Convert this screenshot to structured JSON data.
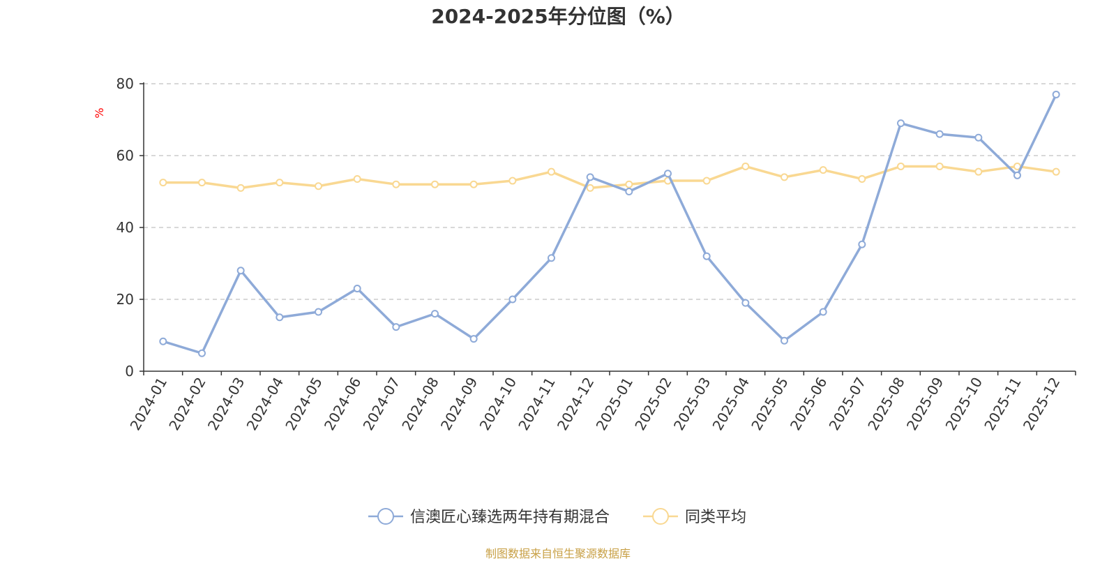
{
  "chart_data": {
    "type": "line",
    "title": "2024-2025年分位图（%）",
    "ylabel": "%",
    "ylim": [
      0,
      80
    ],
    "yticks": [
      0,
      20,
      40,
      60,
      80
    ],
    "grid": true,
    "legend_position": "bottom",
    "categories": [
      "2024-01",
      "2024-02",
      "2024-03",
      "2024-04",
      "2024-05",
      "2024-06",
      "2024-07",
      "2024-08",
      "2024-09",
      "2024-10",
      "2024-11",
      "2024-12",
      "2025-01",
      "2025-02",
      "2025-03",
      "2025-04",
      "2025-05",
      "2025-06",
      "2025-07",
      "2025-08",
      "2025-09",
      "2025-10",
      "2025-11",
      "2025-12"
    ],
    "series": [
      {
        "name": "信澳匠心臻选两年持有期混合",
        "color": "#8eaad8",
        "values": [
          8.3,
          5.0,
          28.0,
          15.0,
          16.5,
          23.0,
          12.3,
          16.0,
          9.0,
          20.0,
          31.5,
          54.0,
          50.0,
          55.0,
          32.0,
          19.0,
          8.5,
          16.5,
          35.3,
          69.0,
          66.0,
          65.0,
          54.5,
          77.0
        ]
      },
      {
        "name": "同类平均",
        "color": "#f9d892",
        "values": [
          52.5,
          52.5,
          51.0,
          52.5,
          51.5,
          53.5,
          52.0,
          52.0,
          52.0,
          53.0,
          55.5,
          51.0,
          52.0,
          53.0,
          53.0,
          57.0,
          54.0,
          56.0,
          53.5,
          57.0,
          57.0,
          55.5,
          57.0,
          55.5
        ]
      }
    ]
  },
  "source_note": "制图数据来自恒生聚源数据库",
  "axis_label_color": "#ff0000"
}
